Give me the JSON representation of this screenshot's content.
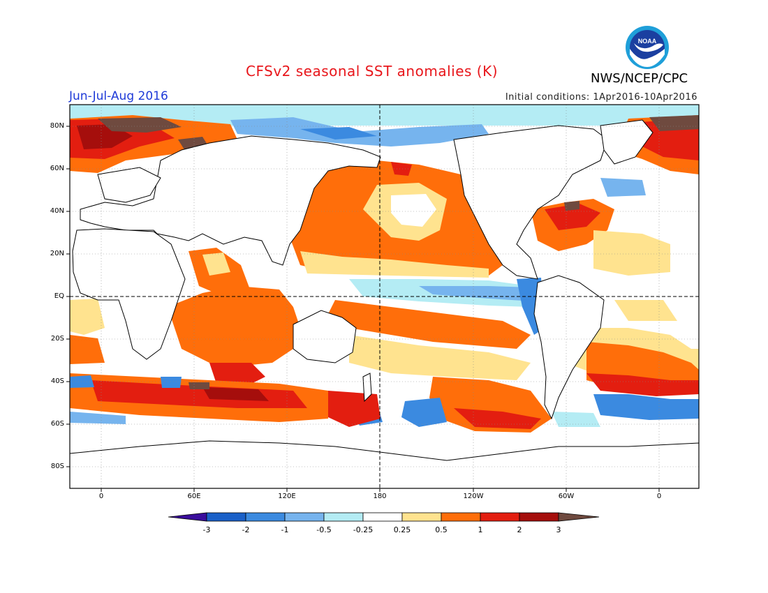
{
  "header": {
    "title": "CFSv2 seasonal SST anomalies (K)",
    "period": "Jun-Jul-Aug 2016",
    "initial_conditions": "Initial conditions: 1Apr2016-10Apr2016",
    "agency": "NWS/NCEP/CPC",
    "logo_icon": "noaa-logo-icon",
    "logo_text": "NOAA"
  },
  "map": {
    "projection": "cylindrical-equidistant",
    "lat_labels": [
      "80N",
      "60N",
      "40N",
      "20N",
      "EQ",
      "20S",
      "40S",
      "60S",
      "80S"
    ],
    "lon_labels": [
      "0",
      "60E",
      "120E",
      "180",
      "120W",
      "60W",
      "0"
    ],
    "reference_lines": [
      "Equator (dashed)",
      "180 meridian (dashed)"
    ]
  },
  "colorbar": {
    "labels": [
      "-3",
      "-2",
      "-1",
      "-0.5",
      "-0.25",
      "0.25",
      "0.5",
      "1",
      "2",
      "3"
    ],
    "colors": [
      "#3a0d9c",
      "#1a60c8",
      "#3b8ae0",
      "#76b4ee",
      "#b4ecf4",
      "#ffffff",
      "#ffe38f",
      "#ff6e0a",
      "#e31e10",
      "#a50e0c",
      "#6f4a3f"
    ]
  }
}
